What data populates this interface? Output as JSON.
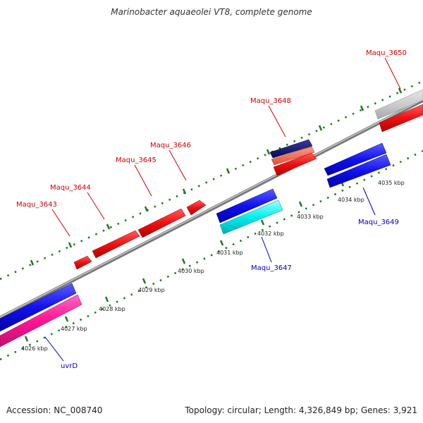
{
  "title": "Marinobacter aquaeolei VT8, complete genome",
  "footer": {
    "accession": "Accession: NC_008740",
    "summary": "Topology: circular; Length: 4,326,849 bp; Genes: 3,921"
  },
  "colors": {
    "forward_label": "#cc0000",
    "reverse_label": "#0000bb",
    "backbone": "#888888",
    "tick": "#1a7a1a"
  },
  "ticks": [
    "4026 kbp",
    "4027 kbp",
    "4028 kbp",
    "4029 kbp",
    "4030 kbp",
    "4031 kbp",
    "4032 kbp",
    "4033 kbp",
    "4034 kbp",
    "4035 kbp"
  ],
  "gene_labels": {
    "forward": [
      "Maqu_3643",
      "Maqu_3644",
      "Maqu_3645",
      "Maqu_3646",
      "Maqu_3648",
      "Maqu_3650"
    ],
    "reverse": [
      "uvrD",
      "Maqu_3647",
      "Maqu_3649"
    ]
  }
}
